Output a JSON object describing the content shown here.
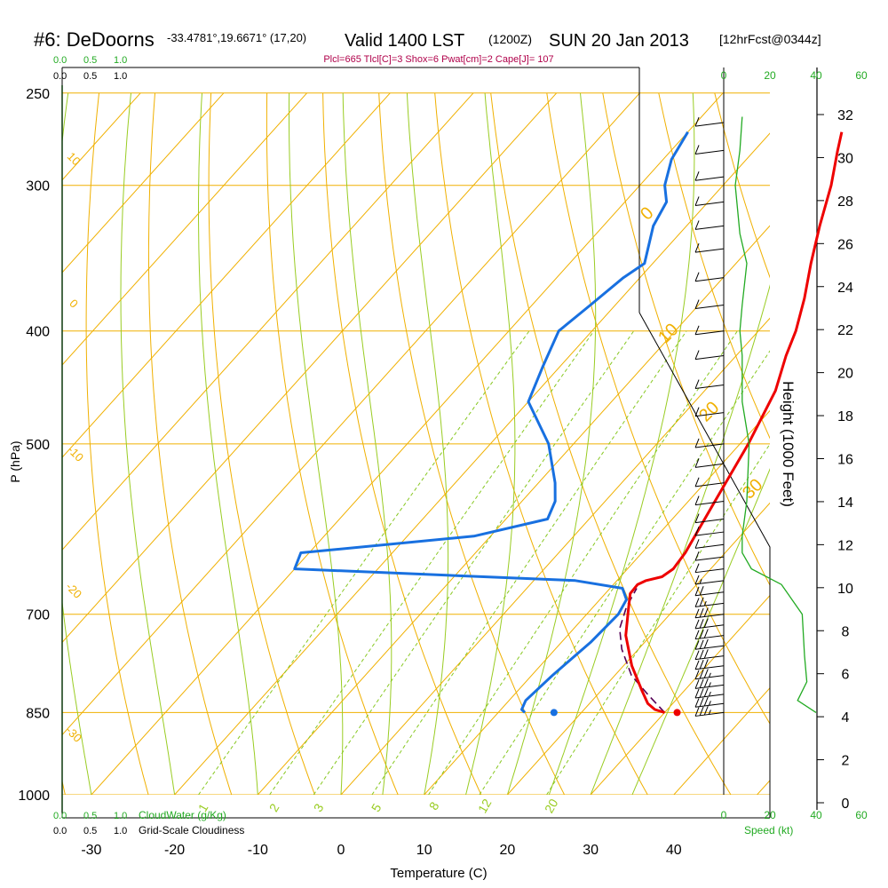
{
  "header": {
    "station": "#6: DeDoorns",
    "coords": "-33.4781°,19.6671° (17,20)",
    "valid": "Valid 1400 LST",
    "utc": "(1200Z)",
    "date": "SUN 20 Jan 2013",
    "forecast": "[12hrFcst@0344z]",
    "indices": "Plcl=665 Tlcl[C]=3 Shox=6 Pwat[cm]=2 Cape[J]= 107"
  },
  "chart_data": {
    "type": "line",
    "title": "#6: DeDoorns  Valid 1400 LST (1200Z) SUN 20 Jan 2013",
    "xlabel": "Temperature (C)",
    "ylabel": "P (hPa)",
    "y2label": "Height (1000 Feet)",
    "x_ticks": [
      -30,
      -20,
      -10,
      0,
      10,
      20,
      30,
      40
    ],
    "x_tick_labels": [
      "-30",
      "-20",
      "-10",
      "0",
      "10",
      "20",
      "30",
      "40"
    ],
    "pressure_ticks": [
      250,
      300,
      400,
      500,
      700,
      850,
      1000
    ],
    "pressure_tick_labels": [
      "250",
      "300",
      "400",
      "500",
      "700",
      "850",
      "1000"
    ],
    "height_ticks": [
      0,
      2,
      4,
      6,
      8,
      10,
      12,
      14,
      16,
      18,
      20,
      22,
      24,
      26,
      28,
      30,
      32
    ],
    "height_tick_labels": [
      "0",
      "2",
      "4",
      "6",
      "8",
      "10",
      "12",
      "14",
      "16",
      "18",
      "20",
      "22",
      "24",
      "26",
      "28",
      "30",
      "32"
    ],
    "temperature_series": {
      "name": "Temperature",
      "color": "#ee0000",
      "points": [
        [
          30,
          850
        ],
        [
          28.5,
          845
        ],
        [
          27,
          835
        ],
        [
          25,
          815
        ],
        [
          21,
          775
        ],
        [
          17,
          730
        ],
        [
          14.6,
          695
        ],
        [
          13,
          672
        ],
        [
          12.9,
          660
        ],
        [
          13.5,
          655
        ],
        [
          15,
          650
        ],
        [
          15.5,
          640
        ],
        [
          15.2,
          620
        ],
        [
          13.2,
          560
        ],
        [
          11,
          500
        ],
        [
          8.5,
          450
        ],
        [
          6,
          420
        ],
        [
          4.5,
          400
        ],
        [
          2,
          375
        ],
        [
          -1,
          350
        ],
        [
          -4,
          325
        ],
        [
          -7,
          300
        ],
        [
          -10,
          280
        ],
        [
          -11.5,
          270
        ]
      ]
    },
    "dewpoint_series": {
      "name": "Dewpoint",
      "color": "#1870e0",
      "points": [
        [
          13.2,
          850
        ],
        [
          12.5,
          845
        ],
        [
          12.0,
          830
        ],
        [
          12.5,
          790
        ],
        [
          13.5,
          740
        ],
        [
          13.8,
          700
        ],
        [
          13.2,
          680
        ],
        [
          11.5,
          665
        ],
        [
          5,
          655
        ],
        [
          -30,
          640
        ],
        [
          -31,
          620
        ],
        [
          -12,
          600
        ],
        [
          -5,
          580
        ],
        [
          -6,
          560
        ],
        [
          -8,
          540
        ],
        [
          -13,
          500
        ],
        [
          -20,
          460
        ],
        [
          -22,
          430
        ],
        [
          -24,
          400
        ],
        [
          -23,
          380
        ],
        [
          -22,
          360
        ],
        [
          -21,
          350
        ],
        [
          -24,
          325
        ],
        [
          -25,
          310
        ],
        [
          -27,
          300
        ],
        [
          -29,
          285
        ],
        [
          -30,
          270
        ]
      ]
    },
    "parcel_series": {
      "name": "Parcel",
      "color": "#550055",
      "points": [
        [
          30,
          850
        ],
        [
          26,
          820
        ],
        [
          22,
          790
        ],
        [
          18,
          750
        ],
        [
          15.5,
          720
        ],
        [
          14,
          690
        ],
        [
          13.2,
          665
        ]
      ]
    },
    "surface_temp_dot": [
      31.5,
      850
    ],
    "surface_dew_dot": [
      16.7,
      850
    ],
    "isotherm_labels": [
      "0",
      "10",
      "20",
      "30"
    ],
    "dry_adiabat_labels": [
      "10",
      "0",
      "-10",
      "-20",
      "-30"
    ],
    "mixing_ratio_labels": [
      "1",
      "2",
      "3",
      "5",
      "8",
      "12",
      "20"
    ],
    "cloud_scale_ticks": [
      "0.0",
      "0.5",
      "1.0"
    ],
    "cloudwater_label": "CloudWater (g/Kg)",
    "cloudiness_label": "Grid-Scale Cloudiness",
    "speed_ticks": [
      "0",
      "20",
      "40",
      "60"
    ],
    "speed_label": "Speed (kt)",
    "wind_speed_profile": {
      "unit": "kt",
      "points": [
        [
          40,
          850
        ],
        [
          32,
          830
        ],
        [
          36,
          800
        ],
        [
          35,
          760
        ],
        [
          34,
          700
        ],
        [
          25,
          660
        ],
        [
          12,
          640
        ],
        [
          8,
          620
        ],
        [
          8,
          600
        ],
        [
          10,
          560
        ],
        [
          11,
          500
        ],
        [
          8,
          460
        ],
        [
          8,
          420
        ],
        [
          7,
          400
        ],
        [
          8,
          380
        ],
        [
          10,
          350
        ],
        [
          7,
          330
        ],
        [
          5,
          300
        ],
        [
          7,
          280
        ],
        [
          8,
          262
        ]
      ]
    },
    "wind_barbs": [
      {
        "p": 850,
        "spd": 35
      },
      {
        "p": 835,
        "spd": 35
      },
      {
        "p": 820,
        "spd": 35
      },
      {
        "p": 805,
        "spd": 35
      },
      {
        "p": 790,
        "spd": 35
      },
      {
        "p": 775,
        "spd": 30
      },
      {
        "p": 760,
        "spd": 30
      },
      {
        "p": 745,
        "spd": 30
      },
      {
        "p": 730,
        "spd": 30
      },
      {
        "p": 715,
        "spd": 30
      },
      {
        "p": 700,
        "spd": 30
      },
      {
        "p": 685,
        "spd": 25
      },
      {
        "p": 670,
        "spd": 20
      },
      {
        "p": 655,
        "spd": 15
      },
      {
        "p": 640,
        "spd": 10
      },
      {
        "p": 625,
        "spd": 10
      },
      {
        "p": 610,
        "spd": 10
      },
      {
        "p": 595,
        "spd": 10
      },
      {
        "p": 580,
        "spd": 10
      },
      {
        "p": 560,
        "spd": 10
      },
      {
        "p": 540,
        "spd": 10
      },
      {
        "p": 520,
        "spd": 10
      },
      {
        "p": 500,
        "spd": 10
      },
      {
        "p": 470,
        "spd": 10
      },
      {
        "p": 445,
        "spd": 10
      },
      {
        "p": 420,
        "spd": 10
      },
      {
        "p": 400,
        "spd": 10
      },
      {
        "p": 380,
        "spd": 10
      },
      {
        "p": 360,
        "spd": 10
      },
      {
        "p": 340,
        "spd": 10
      },
      {
        "p": 325,
        "spd": 10
      },
      {
        "p": 310,
        "spd": 10
      },
      {
        "p": 295,
        "spd": 10
      },
      {
        "p": 280,
        "spd": 10
      },
      {
        "p": 265,
        "spd": 10
      }
    ]
  }
}
